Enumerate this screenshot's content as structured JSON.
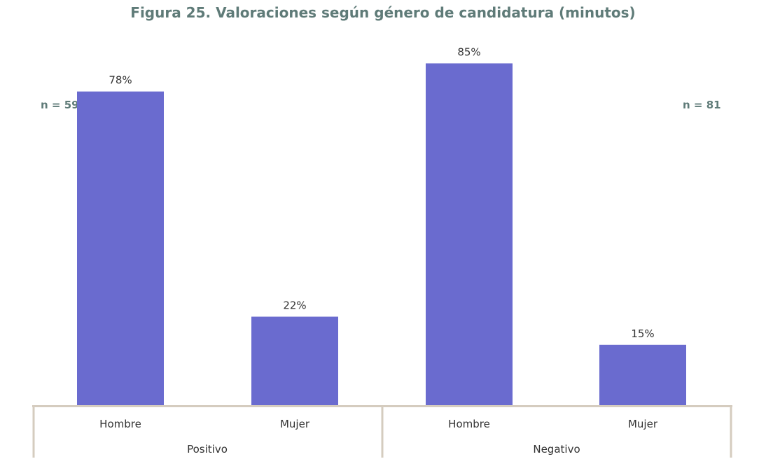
{
  "chart_data": {
    "type": "bar",
    "title": "Figura 25. Valoraciones según género de candidatura (minutos)",
    "xlabel": "",
    "ylabel": "",
    "ylim": [
      0,
      100
    ],
    "groups": [
      {
        "name": "Positivo",
        "n_label": "n = 59",
        "categories": [
          "Hombre",
          "Mujer"
        ],
        "values": [
          78,
          22
        ],
        "value_labels": [
          "78%",
          "22%"
        ]
      },
      {
        "name": "Negativo",
        "n_label": "n = 81",
        "categories": [
          "Hombre",
          "Mujer"
        ],
        "values": [
          85,
          15
        ],
        "value_labels": [
          "85%",
          "15%"
        ]
      }
    ],
    "colors": {
      "bar": "#6a6bcf",
      "axis": "#d5ccbf",
      "title": "#5f7b78"
    }
  }
}
